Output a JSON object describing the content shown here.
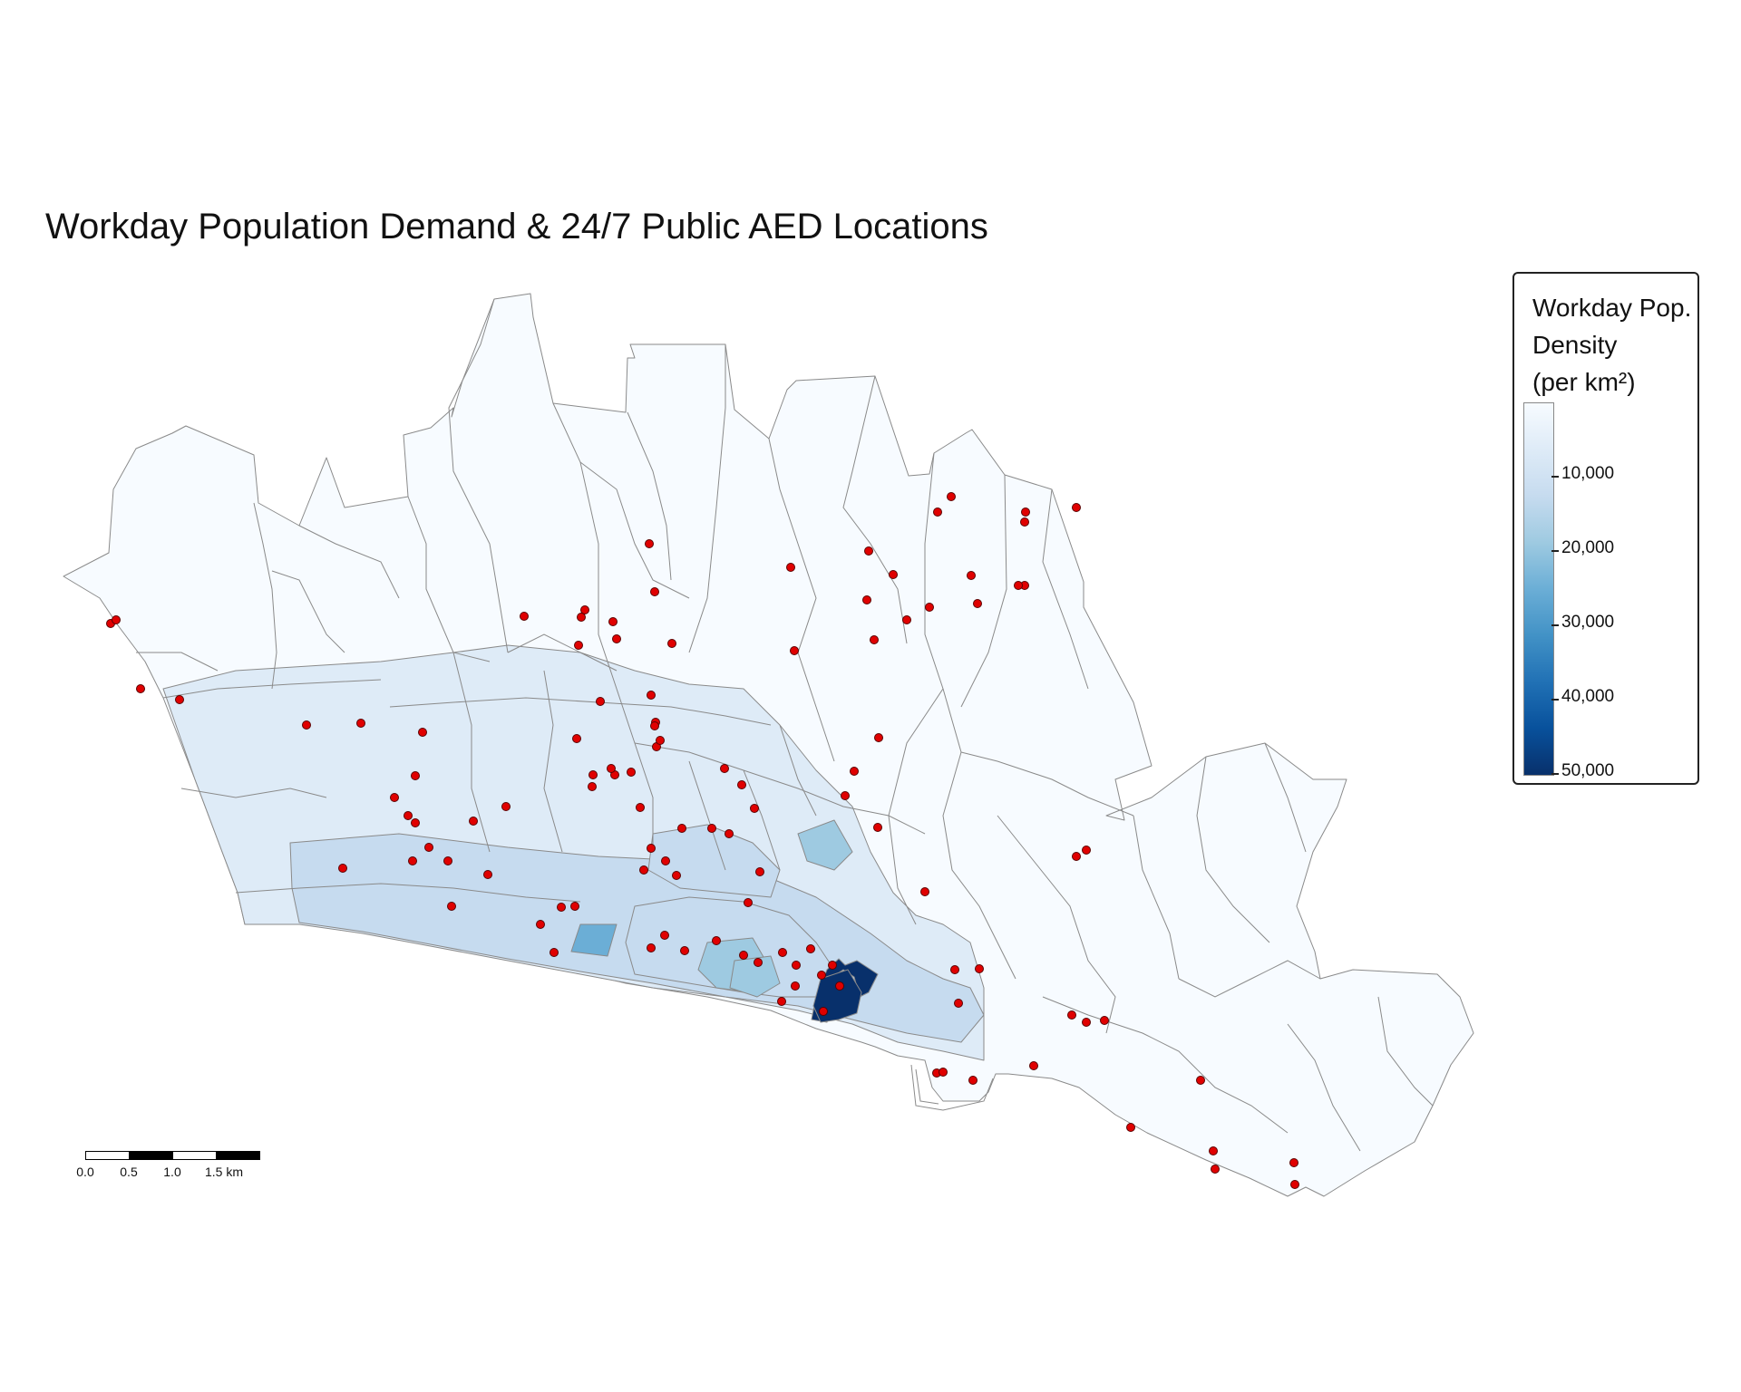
{
  "map": {
    "title": "Workday Population Demand & 24/7 Public AED Locations",
    "marker_color": "#e00000",
    "marker_outline": "#5a0000",
    "boundary_color": "#8a8a8a",
    "fill_scale": [
      "#f7fbff",
      "#deebf7",
      "#c6dbef",
      "#9ecae1",
      "#6baed6",
      "#4292c6",
      "#2171b5",
      "#08519c",
      "#08306b"
    ]
  },
  "legend": {
    "title_line1": "Workday Pop.",
    "title_line2": "Density",
    "title_line3": "(per km²)",
    "ticks": [
      {
        "value": 10000,
        "label": "10,000"
      },
      {
        "value": 20000,
        "label": "20,000"
      },
      {
        "value": 30000,
        "label": "30,000"
      },
      {
        "value": 40000,
        "label": "40,000"
      },
      {
        "value": 50000,
        "label": "50,000"
      }
    ],
    "range": [
      0,
      52000
    ]
  },
  "scalebar": {
    "labels": [
      "0.0",
      "0.5",
      "1.0",
      "1.5 km"
    ]
  }
}
